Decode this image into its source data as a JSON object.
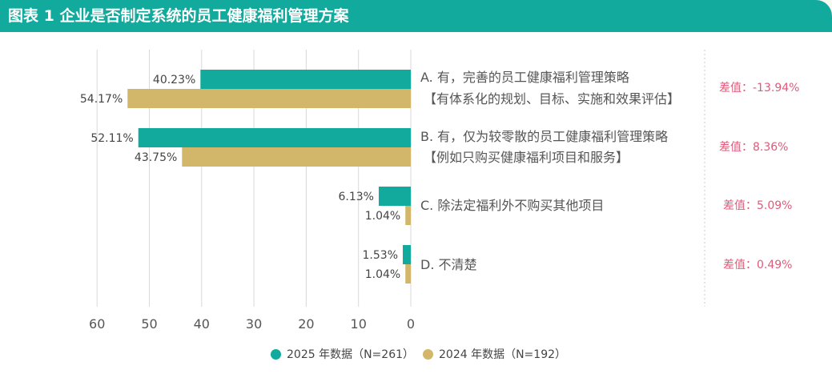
{
  "header": {
    "title": "图表 1  企业是否制定系统的员工健康福利管理方案"
  },
  "chart_data": {
    "type": "bar",
    "orientation": "horizontal-reversed",
    "categories": [
      "A. 有，完善的员工健康福利管理策略",
      "B. 有，仅为较零散的员工健康福利管理策略",
      "C. 除法定福利外不购买其他项目",
      "D. 不清楚"
    ],
    "category_notes": [
      "【有体系化的规划、目标、实施和效果评估】",
      "【例如只购买健康福利项目和服务】",
      "",
      ""
    ],
    "series": [
      {
        "name": "2025 年数据（N=261）",
        "color": "#12aa9c",
        "values": [
          40.23,
          52.11,
          6.13,
          1.53
        ],
        "labels": [
          "40.23%",
          "52.11%",
          "6.13%",
          "1.53%"
        ]
      },
      {
        "name": "2024 年数据（N=192）",
        "color": "#d2b76b",
        "values": [
          54.17,
          43.75,
          1.04,
          1.04
        ],
        "labels": [
          "54.17%",
          "43.75%",
          "1.04%",
          "1.04%"
        ]
      }
    ],
    "differences": [
      "差值：-13.94%",
      "差值：8.36%",
      "差值：5.09%",
      "差值：0.49%"
    ],
    "xlim": [
      0,
      60
    ],
    "xticks": [
      60,
      50,
      40,
      30,
      20,
      10,
      0
    ],
    "grid": true,
    "legend": "bottom-center"
  },
  "colors": {
    "accent": "#12aa9c",
    "secondary": "#d2b76b",
    "diff": "#e05a7a"
  }
}
